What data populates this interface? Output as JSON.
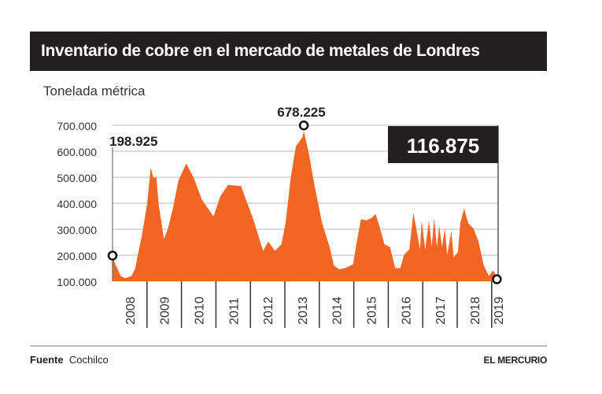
{
  "title": "Inventario de cobre en el mercado de metales de Londres",
  "footer": {
    "source_label": "Fuente",
    "source": "Cochilco",
    "brand": "EL MERCURIO"
  },
  "chart_data": {
    "type": "area",
    "title": "Inventario de cobre en el mercado de metales de Londres",
    "ylabel": "Tonelada métrica",
    "xlabel": "",
    "ylim": [
      100000,
      700000
    ],
    "yticks": [
      "100.000",
      "200.000",
      "300.000",
      "400.000",
      "500.000",
      "600.000",
      "700.000"
    ],
    "ytick_values": [
      100000,
      200000,
      300000,
      400000,
      500000,
      600000,
      700000
    ],
    "xticks": [
      "2008",
      "2009",
      "2010",
      "2011",
      "2012",
      "2013",
      "2014",
      "2015",
      "2016",
      "2017",
      "2018",
      "2019"
    ],
    "xlim": [
      2008.0,
      2019.15
    ],
    "grid": true,
    "fill_color": "#f26522",
    "annotations": [
      {
        "label": "198.925",
        "x": 2008.0,
        "y": 198925
      },
      {
        "label": "678.225",
        "x": 2013.55,
        "y": 678225
      },
      {
        "label": "116.875",
        "x": 2019.15,
        "y": 116875,
        "style": "highlight-box"
      }
    ],
    "x": [
      2008.0,
      2008.05,
      2008.24,
      2008.36,
      2008.55,
      2008.66,
      2008.73,
      2008.85,
      2009.0,
      2009.11,
      2009.19,
      2009.27,
      2009.34,
      2009.49,
      2009.61,
      2009.76,
      2009.91,
      2010.14,
      2010.36,
      2010.59,
      2010.93,
      2011.12,
      2011.35,
      2011.73,
      2011.84,
      2012.07,
      2012.26,
      2012.37,
      2012.52,
      2012.71,
      2012.9,
      2013.02,
      2013.17,
      2013.32,
      2013.51,
      2013.55,
      2013.7,
      2013.85,
      2014.08,
      2014.3,
      2014.42,
      2014.57,
      2014.76,
      2014.98,
      2015.1,
      2015.21,
      2015.36,
      2015.52,
      2015.63,
      2015.74,
      2015.89,
      2016.05,
      2016.2,
      2016.35,
      2016.46,
      2016.61,
      2016.73,
      2016.84,
      2016.92,
      2016.97,
      2017.07,
      2017.18,
      2017.26,
      2017.33,
      2017.41,
      2017.48,
      2017.56,
      2017.64,
      2017.71,
      2017.83,
      2017.9,
      2018.02,
      2018.09,
      2018.2,
      2018.32,
      2018.47,
      2018.62,
      2018.77,
      2018.92,
      2019.04,
      2019.15
    ],
    "values": [
      198925,
      175000,
      120000,
      112000,
      120000,
      150000,
      200000,
      273000,
      395000,
      537000,
      497000,
      502000,
      395000,
      263000,
      303000,
      385000,
      487000,
      553000,
      497000,
      415000,
      349000,
      425000,
      471000,
      466000,
      425000,
      344000,
      263000,
      217000,
      253000,
      217000,
      242000,
      324000,
      497000,
      619000,
      654000,
      678225,
      588000,
      476000,
      324000,
      232000,
      161000,
      146000,
      151000,
      166000,
      263000,
      339000,
      334000,
      344000,
      359000,
      313000,
      242000,
      232000,
      151000,
      151000,
      202000,
      222000,
      364000,
      283000,
      222000,
      334000,
      222000,
      334000,
      232000,
      344000,
      232000,
      313000,
      232000,
      303000,
      202000,
      293000,
      192000,
      212000,
      324000,
      380000,
      324000,
      303000,
      252000,
      161000,
      120000,
      142000,
      116875
    ]
  }
}
